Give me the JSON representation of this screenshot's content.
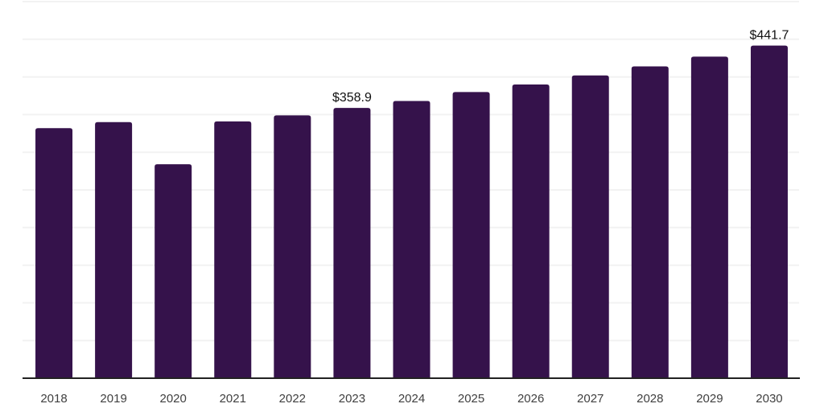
{
  "chart_data": {
    "type": "bar",
    "categories": [
      "2018",
      "2019",
      "2020",
      "2021",
      "2022",
      "2023",
      "2024",
      "2025",
      "2026",
      "2027",
      "2028",
      "2029",
      "2030"
    ],
    "values": [
      332,
      340,
      284,
      341,
      349,
      358.9,
      368,
      380,
      390,
      402,
      414,
      427,
      441.7
    ],
    "point_labels": [
      {
        "category": "2023",
        "text": "$358.9"
      },
      {
        "category": "2030",
        "text": "$441.7"
      }
    ],
    "ylim": [
      0,
      500
    ],
    "grid_step": 50,
    "grid": true,
    "legend": false,
    "colors": {
      "bar": "#35124B",
      "grid": "#f2f2f2",
      "axis": "#222222",
      "tick_label": "#3f3f3f",
      "data_label": "#111111",
      "background": "#ffffff"
    }
  }
}
